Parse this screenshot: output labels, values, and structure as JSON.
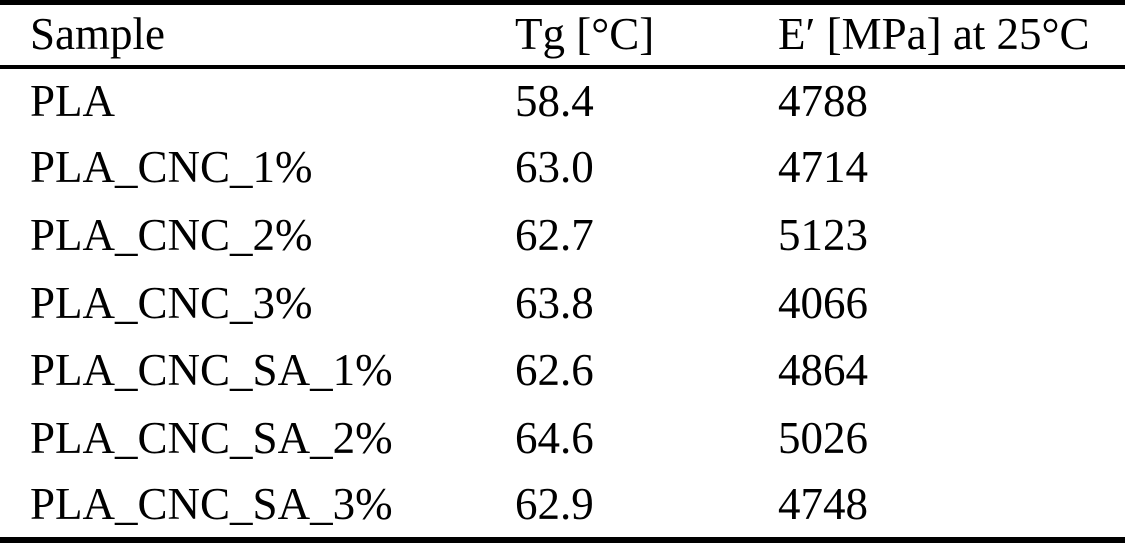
{
  "table": {
    "columns": [
      "Sample",
      "Tg [°C]",
      "E′ [MPa] at 25°C"
    ],
    "rows": [
      {
        "sample": "PLA",
        "tg": "58.4",
        "e_modulus": "4788"
      },
      {
        "sample": "PLA_CNC_1%",
        "tg": "63.0",
        "e_modulus": "4714"
      },
      {
        "sample": "PLA_CNC_2%",
        "tg": "62.7",
        "e_modulus": "5123"
      },
      {
        "sample": "PLA_CNC_3%",
        "tg": "63.8",
        "e_modulus": "4066"
      },
      {
        "sample": "PLA_CNC_SA_1%",
        "tg": "62.6",
        "e_modulus": "4864"
      },
      {
        "sample": "PLA_CNC_SA_2%",
        "tg": "64.6",
        "e_modulus": "5026"
      },
      {
        "sample": "PLA_CNC_SA_3%",
        "tg": "62.9",
        "e_modulus": "4748"
      }
    ]
  },
  "chart_data": {
    "type": "table",
    "categories": [
      "PLA",
      "PLA_CNC_1%",
      "PLA_CNC_2%",
      "PLA_CNC_3%",
      "PLA_CNC_SA_1%",
      "PLA_CNC_SA_2%",
      "PLA_CNC_SA_3%"
    ],
    "series": [
      {
        "name": "Tg [°C]",
        "values": [
          58.4,
          63.0,
          62.7,
          63.8,
          62.6,
          64.6,
          62.9
        ]
      },
      {
        "name": "E′ [MPa] at 25°C",
        "values": [
          4788,
          4714,
          5123,
          4066,
          4864,
          5026,
          4748
        ]
      }
    ]
  },
  "colors": {
    "text": "#000000",
    "border": "#000000",
    "background": "#ffffff"
  }
}
